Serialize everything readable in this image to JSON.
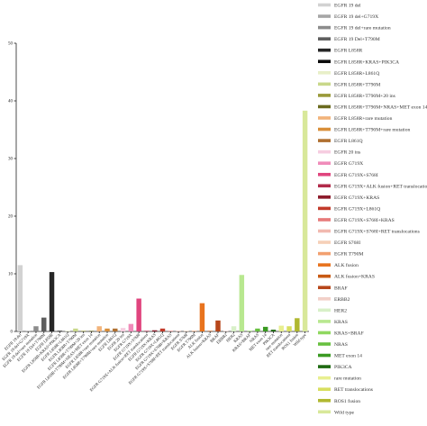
{
  "chart_data": {
    "type": "bar",
    "title": "",
    "xlabel": "",
    "ylabel": "",
    "ylim": [
      0,
      50
    ],
    "yticks": [
      0,
      10,
      20,
      30,
      40,
      50
    ],
    "grid": false,
    "legend_position": "right",
    "categories": [
      "EGFR 19 del",
      "EGFR 19 del+G719X",
      "EGFR 19 del+rare mutation",
      "EGFR 19 Del+T790M",
      "EGFR L858R",
      "EGFR L858R+KRAS+PIK3CA",
      "EGFR L858R+L861Q",
      "EGFR L858R+T790M",
      "EGFR L858R+T790M+20 ins",
      "EGFR L858R+T790M+NRAS+MET exon 14",
      "EGFR L858R+rare mutation",
      "EGFR L858R+T790M+rare mutation",
      "EGFR L861Q",
      "EGFR 20 ins",
      "EGFR G719X",
      "EGFR G719X+S768I",
      "EGFR G719X+ALK fusion+RET translocations",
      "EGFR G719X+KRAS",
      "EGFR G719X+L861Q",
      "EGFR G719X+S768I+KRAS",
      "EGFR G719X+S768I+RET translocations",
      "EGFR S768I",
      "EGFR T790M",
      "ALK fusion",
      "ALK fusion+KRAS",
      "BRAF",
      "ERBB2",
      "HER2",
      "KRAS",
      "KRAS+BRAF",
      "NRAS",
      "MET exon 14",
      "PIK3CA",
      "rare mutation",
      "RET translocations",
      "ROS1 fusion",
      "Wild type"
    ],
    "xtick_labels": [
      "EGFR 19 del",
      "EGFR 19 del+G719X",
      "EGFR 19 del+rare mutation",
      "EGFR 19 Del+T790M",
      "EGFR L858R",
      "EGFR L858R+KRAS+PIK3CA",
      "EGFR L858R+L861Q",
      "EGFR L858R+T790M",
      "EGFR L858R+T790M+20 ins",
      "EGFR L858R+T790M+NRAS+MET exon 14",
      "EGFR L858R+rare mutation",
      "EGFR L858R+T790M+rare mutation",
      "EGFR L861Q",
      "EGFR 20 ins",
      "EGFR G719X",
      "EGFR G719X+S768I",
      "EGFR G719X+ALK fusion+RET translocations",
      "EGFR G719X+KRAS",
      "EGFR G719X+L861Q",
      "EGFR G719X+S768I+KRAS",
      "EGFR G719X+S768I+RET translocations",
      "EGFR S768I",
      "EGFR T790M",
      "ALK fusion",
      "ALK fusion+KRAS",
      "BRAF",
      "ERBB2",
      "HER2",
      "KRAS",
      "KRAS+BRAF",
      "NRAS",
      "MET exon 14",
      "PIK3CA",
      "rare mutation",
      "RET translocations",
      "ROS1 fusion",
      "Wild type"
    ],
    "values": [
      11.5,
      0.1,
      0.9,
      2.4,
      10.3,
      0.1,
      0.1,
      0.5,
      0.1,
      0.1,
      0.9,
      0.5,
      0.5,
      0.6,
      1.3,
      5.7,
      0.1,
      0.2,
      0.5,
      0.1,
      0.1,
      0.1,
      0.1,
      4.9,
      0.1,
      1.9,
      0.1,
      0.9,
      9.8,
      0.1,
      0.5,
      0.8,
      0.3,
      1.0,
      0.9,
      2.3,
      38.3
    ],
    "colors": [
      "#d2d2d2",
      "#a6a6a6",
      "#8c8c8c",
      "#5e5e5e",
      "#262626",
      "#0b0b0b",
      "#e8efc8",
      "#c9d88a",
      "#9a9a3a",
      "#6a6a1e",
      "#f2b37a",
      "#d98f3a",
      "#b07030",
      "#f6cde0",
      "#f08cba",
      "#e0457e",
      "#b22a4a",
      "#8c1a2a",
      "#c23a2a",
      "#e77a7a",
      "#f2b9b0",
      "#f6d0b8",
      "#f2a070",
      "#e8731e",
      "#c85a14",
      "#b7461a",
      "#f2d0c8",
      "#d8f0c8",
      "#b8e890",
      "#90d860",
      "#68c040",
      "#3a9a22",
      "#1e6a12",
      "#e8ef90",
      "#d8df60",
      "#b0b830",
      "#d8e89a"
    ]
  }
}
